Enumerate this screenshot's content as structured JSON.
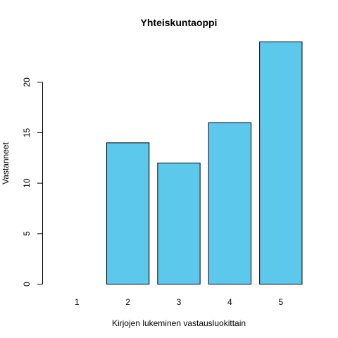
{
  "chart_data": {
    "type": "bar",
    "title": "Yhteiskuntaoppi",
    "xlabel": "Kirjojen lukeminen vastausluokittain",
    "ylabel": "Vastanneet",
    "categories": [
      "1",
      "2",
      "3",
      "4",
      "5"
    ],
    "values": [
      0,
      14,
      12,
      16,
      24
    ],
    "ylim": [
      0,
      24
    ],
    "yticks": [
      0,
      5,
      10,
      15,
      20
    ],
    "bar_color": "#5bc8ec",
    "bar_stroke": "#000000",
    "grid": false
  }
}
